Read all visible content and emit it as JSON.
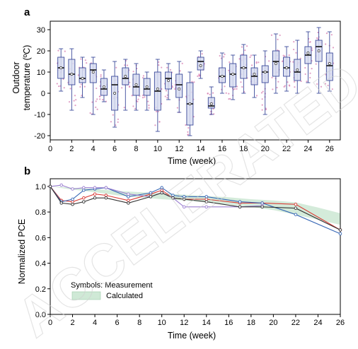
{
  "watermark": "ACCELERATED ARTICLE PREVIEW",
  "chart_data": [
    {
      "panel": "a",
      "type": "box",
      "xlabel": "Time (week)",
      "ylabel_line1": "Outdoor",
      "ylabel_line2": "temperature (ºC)",
      "xlim": [
        0,
        27
      ],
      "ylim": [
        -22,
        34
      ],
      "xticks": [
        0,
        2,
        4,
        6,
        8,
        10,
        12,
        14,
        16,
        18,
        20,
        22,
        24,
        26
      ],
      "yticks": [
        -20,
        -10,
        0,
        10,
        20,
        30
      ],
      "box_color": "#3b4a9a",
      "box_fill": "#d7dcf0",
      "point_color": "#d77fb2",
      "boxes": [
        {
          "x": 1,
          "min": 1,
          "q1": 7,
          "median": 12,
          "mean": 12,
          "q3": 17,
          "max": 21
        },
        {
          "x": 2,
          "min": -8,
          "q1": 4,
          "median": 9,
          "mean": 9,
          "q3": 16,
          "max": 21
        },
        {
          "x": 3,
          "min": -2,
          "q1": 5,
          "median": 7,
          "mean": 7,
          "q3": 12,
          "max": 17
        },
        {
          "x": 4,
          "min": -10,
          "q1": 5,
          "median": 11,
          "mean": 10,
          "q3": 14,
          "max": 17
        },
        {
          "x": 5,
          "min": -4,
          "q1": -1,
          "median": 2,
          "mean": 3,
          "q3": 7,
          "max": 11
        },
        {
          "x": 6,
          "min": -16,
          "q1": -8,
          "median": 4,
          "mean": 0,
          "q3": 8,
          "max": 15
        },
        {
          "x": 7,
          "min": -8,
          "q1": 4,
          "median": 7,
          "mean": 8,
          "q3": 12,
          "max": 16
        },
        {
          "x": 8,
          "min": -8,
          "q1": -1,
          "median": 3,
          "mean": 4,
          "q3": 9,
          "max": 14
        },
        {
          "x": 9,
          "min": -8,
          "q1": -1,
          "median": 2,
          "mean": 3,
          "q3": 7,
          "max": 10
        },
        {
          "x": 10,
          "min": -18,
          "q1": -8,
          "median": 1,
          "mean": 2,
          "q3": 10,
          "max": 16
        },
        {
          "x": 11,
          "min": -3,
          "q1": 2,
          "median": 7,
          "mean": 6,
          "q3": 10,
          "max": 14
        },
        {
          "x": 12,
          "min": -9,
          "q1": -2,
          "median": 4,
          "mean": 2,
          "q3": 9,
          "max": 15
        },
        {
          "x": 13,
          "min": -20,
          "q1": -15,
          "median": -5,
          "mean": -5,
          "q3": 5,
          "max": 10
        },
        {
          "x": 14,
          "min": 7,
          "q1": 11,
          "median": 15,
          "mean": 13,
          "q3": 17,
          "max": 20
        },
        {
          "x": 15,
          "min": -10,
          "q1": -7,
          "median": -6,
          "mean": -5,
          "q3": -2,
          "max": 3
        },
        {
          "x": 16,
          "min": 0,
          "q1": 5,
          "median": 8,
          "mean": 8,
          "q3": 12,
          "max": 19
        },
        {
          "x": 17,
          "min": -3,
          "q1": 3,
          "median": 9,
          "mean": 9,
          "q3": 14,
          "max": 18
        },
        {
          "x": 18,
          "min": 0,
          "q1": 7,
          "median": 12,
          "mean": 12,
          "q3": 18,
          "max": 23
        },
        {
          "x": 19,
          "min": -2,
          "q1": 4,
          "median": 8,
          "mean": 9,
          "q3": 12,
          "max": 18
        },
        {
          "x": 20,
          "min": -10,
          "q1": 5,
          "median": 10,
          "mean": 10,
          "q3": 13,
          "max": 20
        },
        {
          "x": 21,
          "min": 0,
          "q1": 8,
          "median": 15,
          "mean": 14,
          "q3": 20,
          "max": 28
        },
        {
          "x": 22,
          "min": 1,
          "q1": 8,
          "median": 12,
          "mean": 12,
          "q3": 17,
          "max": 22
        },
        {
          "x": 23,
          "min": 0,
          "q1": 6,
          "median": 10,
          "mean": 11,
          "q3": 16,
          "max": 25
        },
        {
          "x": 24,
          "min": 5,
          "q1": 14,
          "median": 18,
          "mean": 19,
          "q3": 22,
          "max": 29
        },
        {
          "x": 25,
          "min": 0,
          "q1": 15,
          "median": 22,
          "mean": 20,
          "q3": 25,
          "max": 31
        },
        {
          "x": 26,
          "min": 1,
          "q1": 6,
          "median": 13,
          "mean": 14,
          "q3": 19,
          "max": 29
        }
      ]
    },
    {
      "panel": "b",
      "type": "line",
      "xlabel": "Time (week)",
      "ylabel": "Normalized PCE",
      "xlim": [
        0,
        26
      ],
      "ylim": [
        0,
        1.06
      ],
      "xticks": [
        0,
        2,
        4,
        6,
        8,
        10,
        12,
        14,
        16,
        18,
        20,
        22,
        24,
        26
      ],
      "yticks": [
        0.0,
        0.2,
        0.4,
        0.6,
        0.8,
        1.0
      ],
      "ytick_labels": [
        "0.0",
        "0.2",
        "0.4",
        "0.6",
        "0.8",
        "1.0"
      ],
      "legend": {
        "symbols_label": "Symbols: Measurement",
        "band_label": "Calculated",
        "band_color": "#cfe9d6"
      },
      "calculated_band": {
        "x": [
          0,
          2,
          4,
          6,
          8,
          10,
          12,
          14,
          16,
          18,
          20,
          22,
          24,
          26
        ],
        "upper": [
          1.0,
          0.99,
          0.98,
          0.965,
          0.955,
          0.945,
          0.935,
          0.925,
          0.915,
          0.9,
          0.89,
          0.875,
          0.835,
          0.79
        ],
        "lower": [
          1.0,
          0.975,
          0.955,
          0.93,
          0.915,
          0.9,
          0.89,
          0.875,
          0.86,
          0.84,
          0.815,
          0.78,
          0.74,
          0.7
        ]
      },
      "series": [
        {
          "color": "#d93a35",
          "x": [
            0,
            1,
            2,
            3,
            4,
            5,
            7,
            9,
            10,
            11,
            12,
            14,
            17,
            19,
            22,
            26
          ],
          "y": [
            1.0,
            0.89,
            0.88,
            0.91,
            0.94,
            0.93,
            0.89,
            0.94,
            0.97,
            0.91,
            0.9,
            0.9,
            0.87,
            0.87,
            0.86,
            0.66
          ]
        },
        {
          "color": "#3767b5",
          "x": [
            0,
            1,
            2,
            3,
            4,
            5,
            7,
            9,
            10,
            11,
            12,
            14,
            17,
            19,
            22,
            26
          ],
          "y": [
            1.0,
            0.88,
            0.9,
            0.97,
            0.98,
            0.99,
            0.92,
            0.95,
            0.99,
            0.93,
            0.92,
            0.92,
            0.88,
            0.87,
            0.78,
            0.63
          ]
        },
        {
          "color": "#9b7fd0",
          "x": [
            0,
            1,
            2,
            3,
            4,
            5,
            7,
            9,
            10,
            11,
            12,
            14,
            17,
            19
          ],
          "y": [
            1.0,
            1.01,
            0.98,
            0.99,
            0.99,
            0.99,
            0.94,
            0.92,
            0.95,
            0.91,
            0.84,
            0.84,
            0.84,
            0.85
          ]
        },
        {
          "color": "#333333",
          "x": [
            0,
            1,
            2,
            3,
            4,
            5,
            7,
            9,
            10,
            11,
            12,
            14,
            17,
            19,
            22,
            26
          ],
          "y": [
            1.0,
            0.87,
            0.86,
            0.88,
            0.91,
            0.91,
            0.87,
            0.92,
            0.95,
            0.91,
            0.9,
            0.88,
            0.84,
            0.84,
            0.83,
            0.66
          ]
        }
      ]
    }
  ]
}
